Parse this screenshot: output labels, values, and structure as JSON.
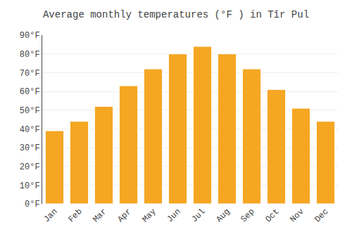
{
  "chart_data": {
    "type": "bar",
    "title": "Average monthly temperatures (°F ) in Tīr Pul",
    "categories": [
      "Jan",
      "Feb",
      "Mar",
      "Apr",
      "May",
      "Jun",
      "Jul",
      "Aug",
      "Sep",
      "Oct",
      "Nov",
      "Dec"
    ],
    "values": [
      39,
      44,
      52,
      63,
      72,
      80,
      84,
      80,
      72,
      61,
      51,
      44
    ],
    "color": "#F5A623",
    "ylim": [
      0,
      90
    ],
    "yticks": [
      {
        "value": 0,
        "label": "0°F"
      },
      {
        "value": 10,
        "label": "10°F"
      },
      {
        "value": 20,
        "label": "20°F"
      },
      {
        "value": 30,
        "label": "30°F"
      },
      {
        "value": 40,
        "label": "40°F"
      },
      {
        "value": 50,
        "label": "50°F"
      },
      {
        "value": 60,
        "label": "60°F"
      },
      {
        "value": 70,
        "label": "70°F"
      },
      {
        "value": 80,
        "label": "80°F"
      },
      {
        "value": 90,
        "label": "90°F"
      }
    ],
    "grid": true
  }
}
